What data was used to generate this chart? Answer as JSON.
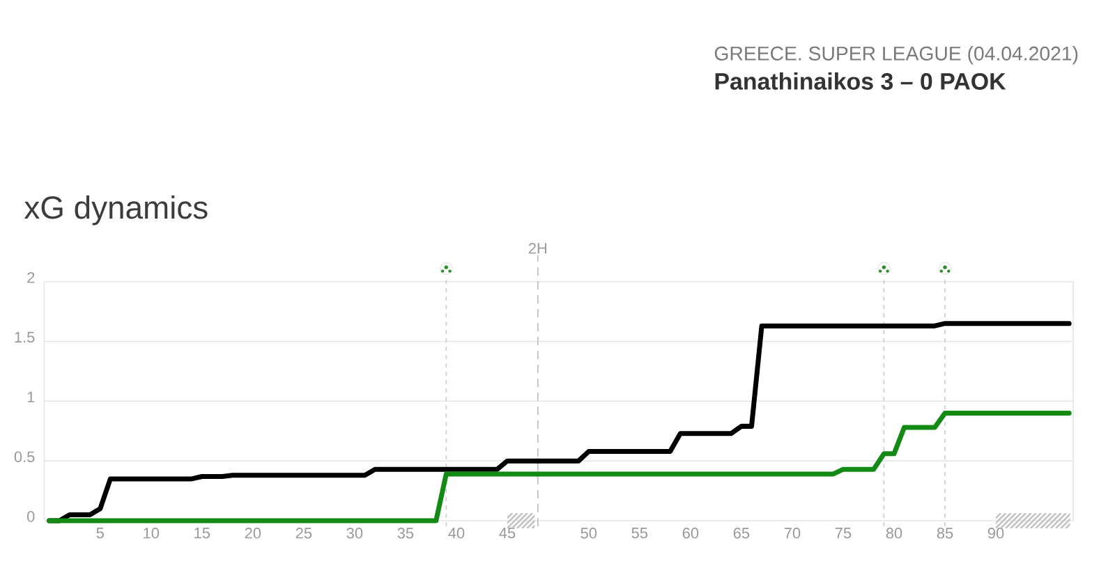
{
  "chart_data": [
    {
      "type": "line",
      "title": "xG dynamics",
      "annotations": [
        "GREECE. SUPER LEAGUE (04.04.2021)",
        "Panathinaikos 3 – 0 PAOK"
      ],
      "xlim": [
        -0.5,
        48
      ],
      "xticks": [
        5,
        10,
        15,
        20,
        25,
        30,
        35,
        40,
        45
      ],
      "ylim": [
        0,
        2
      ],
      "yticks": [
        0,
        0.5,
        1,
        1.5,
        2
      ],
      "grid": "y",
      "series": [
        {
          "color": "#000000",
          "x": [
            0,
            1,
            2,
            4,
            5,
            6,
            14,
            15,
            17,
            18,
            31,
            32,
            44,
            45,
            48
          ],
          "values": [
            0,
            0,
            0.05,
            0.05,
            0.1,
            0.35,
            0.35,
            0.37,
            0.37,
            0.38,
            0.38,
            0.43,
            0.43,
            0.5,
            0.5
          ]
        },
        {
          "color": "#138a13",
          "x": [
            0,
            38,
            39,
            48
          ],
          "values": [
            0,
            0,
            0.39,
            0.39
          ]
        }
      ],
      "ref_lines": [
        {
          "axis": "x",
          "value": 39,
          "line_style": "dotted",
          "color": "#cccccc"
        }
      ]
    },
    {
      "type": "line",
      "xlim": [
        45,
        97.6
      ],
      "xticks": [
        50,
        55,
        60,
        65,
        70,
        75,
        80,
        85,
        90
      ],
      "ylim": [
        0,
        2
      ],
      "yticks": [
        0,
        0.5,
        1,
        1.5,
        2
      ],
      "grid": "y",
      "tick_labels": "x",
      "series": [
        {
          "color": "#000000",
          "x": [
            45,
            49,
            50,
            58,
            59,
            64,
            65,
            66,
            67,
            84,
            85,
            97.2
          ],
          "values": [
            0.5,
            0.5,
            0.58,
            0.58,
            0.73,
            0.73,
            0.79,
            0.79,
            1.63,
            1.63,
            1.65,
            1.65
          ]
        },
        {
          "color": "#138a13",
          "x": [
            45,
            74,
            75,
            78,
            79,
            80,
            81,
            84,
            85,
            97.2
          ],
          "values": [
            0.39,
            0.39,
            0.43,
            0.43,
            0.56,
            0.56,
            0.78,
            0.78,
            0.9,
            0.9
          ]
        }
      ],
      "ref_lines": [
        {
          "axis": "x",
          "value": 45,
          "label": "2H",
          "line_style": "dashed",
          "color": "#bbbbbb"
        },
        {
          "axis": "x",
          "value": 79,
          "line_style": "dotted",
          "color": "#cccccc"
        },
        {
          "axis": "x",
          "value": 85,
          "line_style": "dotted",
          "color": "#cccccc"
        }
      ]
    }
  ]
}
